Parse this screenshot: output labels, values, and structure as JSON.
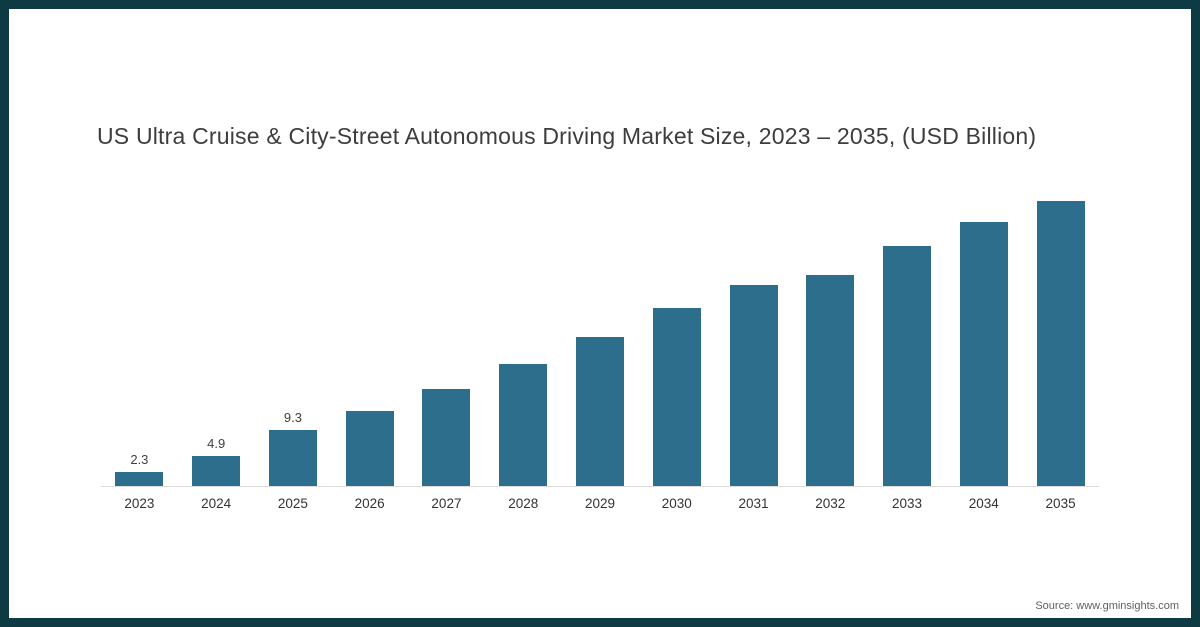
{
  "title": "US Ultra Cruise & City-Street Autonomous Driving Market Size, 2023 – 2035, (USD Billion)",
  "source": "Source: www.gminsights.com",
  "colors": {
    "bar": "#2e6e8d",
    "frame_border": "#0e3a44",
    "title_text": "#3d3d3d",
    "axis_line": "#dcdcdc"
  },
  "chart_data": {
    "type": "bar",
    "title": "US Ultra Cruise & City-Street Autonomous Driving Market Size, 2023 – 2035, (USD Billion)",
    "categories": [
      "2023",
      "2024",
      "2025",
      "2026",
      "2027",
      "2028",
      "2029",
      "2030",
      "2031",
      "2032",
      "2033",
      "2034",
      "2035"
    ],
    "values": [
      2.3,
      4.9,
      9.3,
      12.4,
      16.0,
      20.1,
      24.5,
      29.3,
      33.1,
      34.8,
      39.5,
      43.5,
      47.0
    ],
    "data_labels": {
      "2023": "2.3",
      "2024": "4.9",
      "2025": "9.3"
    },
    "xlabel": "",
    "ylabel": "",
    "units": "USD Billion",
    "ylim": [
      0,
      50
    ],
    "grid": false,
    "legend": false,
    "bar_color": "#2e6e8d"
  }
}
